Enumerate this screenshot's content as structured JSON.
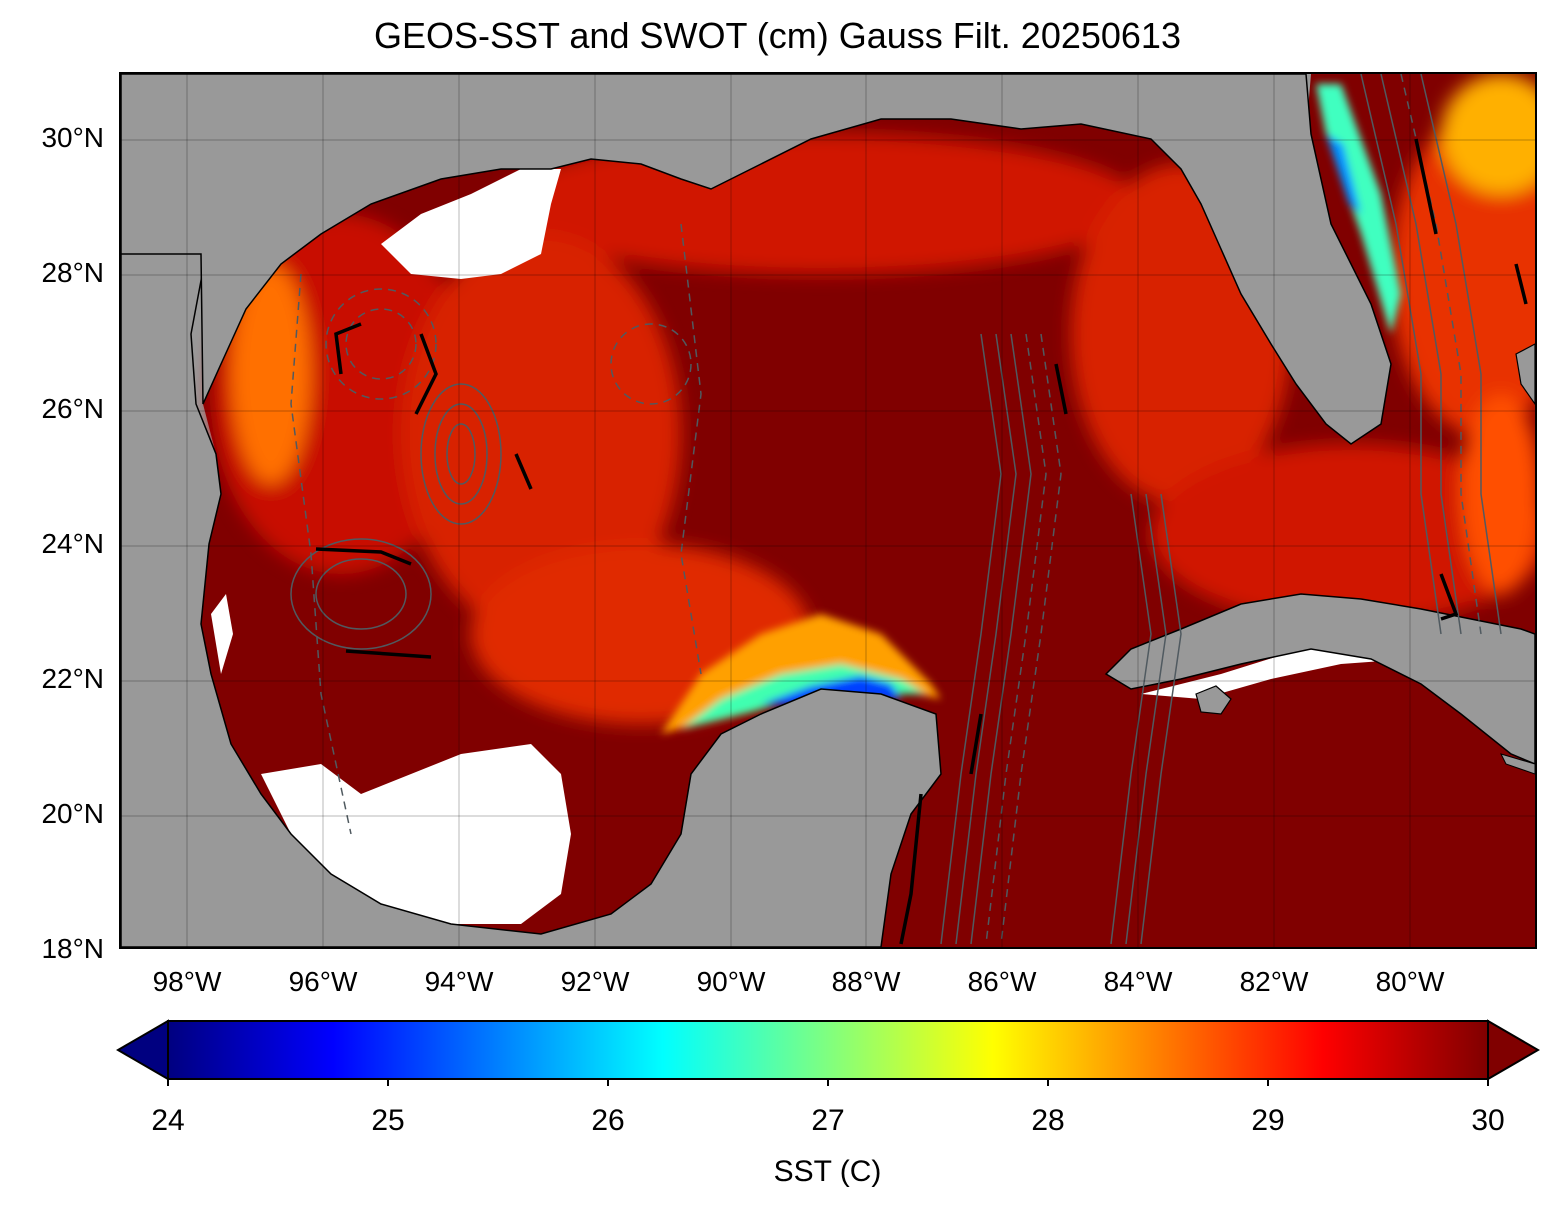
{
  "title": "GEOS-SST  and SWOT (cm) Gauss Filt. 20250613",
  "lat_labels": [
    "30°N",
    "28°N",
    "26°N",
    "24°N",
    "22°N",
    "20°N",
    "18°N"
  ],
  "lon_labels": [
    "98°W",
    "96°W",
    "94°W",
    "92°W",
    "90°W",
    "88°W",
    "86°W",
    "84°W",
    "82°W",
    "80°W"
  ],
  "map": {
    "lon_range": [
      -99,
      -78.2
    ],
    "lat_range": [
      18,
      31
    ],
    "land_color": "#999999",
    "gridlines": true,
    "contour_field": "SWOT SSH (cm)",
    "layers": [
      "sst-raster",
      "ssh-contours",
      "coastline"
    ]
  },
  "colorbar": {
    "ticks": [
      "24",
      "25",
      "26",
      "27",
      "28",
      "29",
      "30"
    ],
    "range": [
      24,
      30
    ],
    "label": "SST (C)",
    "colormap": "jet",
    "extend": "both"
  }
}
